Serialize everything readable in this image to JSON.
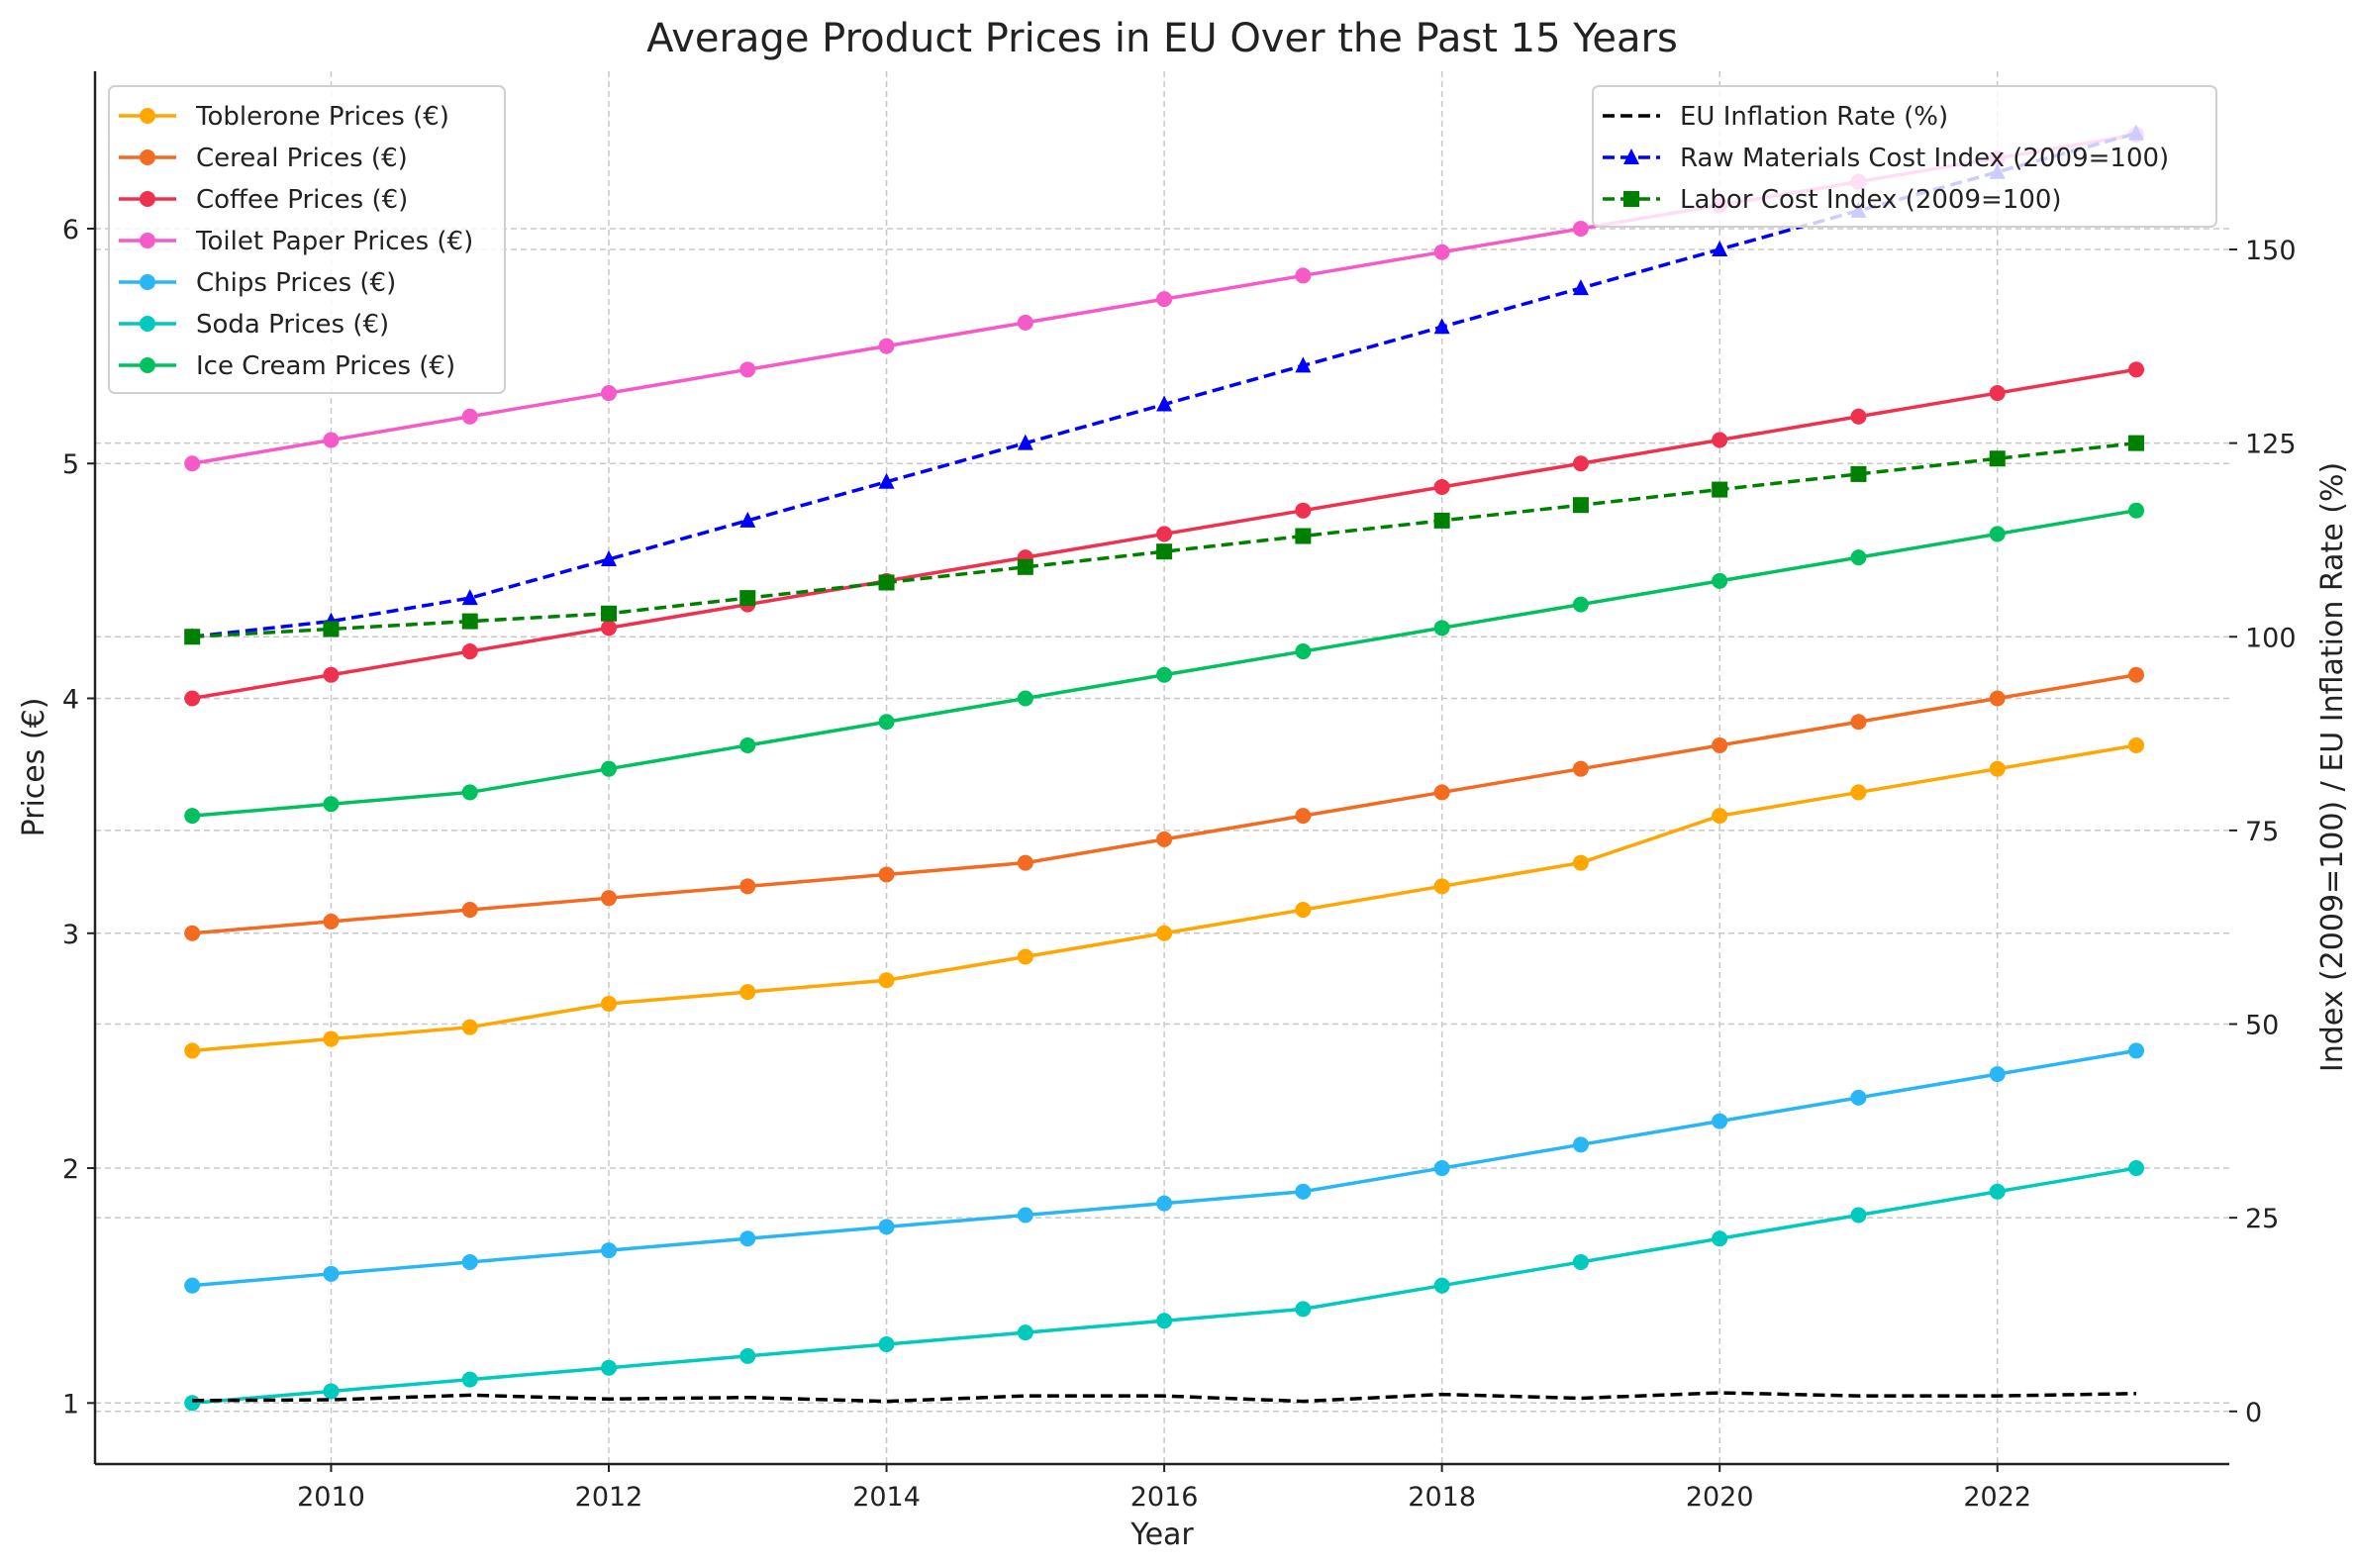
{
  "chart_data": {
    "type": "line",
    "title": "Average Product Prices in EU Over the Past 15 Years",
    "xlabel": "Year",
    "ylabel": "Prices (€)",
    "y2label": "Index (2009=100) / EU Inflation Rate (%)",
    "x": [
      2009,
      2010,
      2011,
      2012,
      2013,
      2014,
      2015,
      2016,
      2017,
      2018,
      2019,
      2020,
      2021,
      2022,
      2023
    ],
    "xlim": [
      2008.3,
      2023.67
    ],
    "ylim": [
      0.74,
      6.67
    ],
    "y2lim": [
      -6.8,
      173
    ],
    "xticks": [
      2010,
      2012,
      2014,
      2016,
      2018,
      2020,
      2022
    ],
    "yticks": [
      1,
      2,
      3,
      4,
      5,
      6
    ],
    "y2ticks": [
      0,
      25,
      50,
      75,
      100,
      125,
      150
    ],
    "grid": true,
    "series": [
      {
        "name": "Toblerone Prices (€)",
        "axis": "left",
        "color": "#FFA600",
        "style": "solid",
        "marker": "circle",
        "values": [
          2.5,
          2.55,
          2.6,
          2.7,
          2.75,
          2.8,
          2.9,
          3.0,
          3.1,
          3.2,
          3.3,
          3.5,
          3.6,
          3.7,
          3.8
        ]
      },
      {
        "name": "Cereal Prices (€)",
        "axis": "left",
        "color": "#F26B21",
        "style": "solid",
        "marker": "circle",
        "values": [
          3.0,
          3.05,
          3.1,
          3.15,
          3.2,
          3.25,
          3.3,
          3.4,
          3.5,
          3.6,
          3.7,
          3.8,
          3.9,
          4.0,
          4.1
        ]
      },
      {
        "name": "Coffee Prices (€)",
        "axis": "left",
        "color": "#F0304F",
        "style": "solid",
        "marker": "circle",
        "values": [
          4.0,
          4.1,
          4.2,
          4.3,
          4.4,
          4.5,
          4.6,
          4.7,
          4.8,
          4.9,
          5.0,
          5.1,
          5.2,
          5.3,
          5.4
        ]
      },
      {
        "name": "Toilet Paper Prices (€)",
        "axis": "left",
        "color": "#F55AC8",
        "style": "solid",
        "marker": "circle",
        "values": [
          5.0,
          5.1,
          5.2,
          5.3,
          5.4,
          5.5,
          5.6,
          5.7,
          5.8,
          5.9,
          6.0,
          6.1,
          6.2,
          6.3,
          6.4
        ]
      },
      {
        "name": "Chips Prices (€)",
        "axis": "left",
        "color": "#29B6F6",
        "style": "solid",
        "marker": "circle",
        "values": [
          1.5,
          1.55,
          1.6,
          1.65,
          1.7,
          1.75,
          1.8,
          1.85,
          1.9,
          2.0,
          2.1,
          2.2,
          2.3,
          2.4,
          2.5
        ]
      },
      {
        "name": "Soda Prices (€)",
        "axis": "left",
        "color": "#00C9BE",
        "style": "solid",
        "marker": "circle",
        "values": [
          1.0,
          1.05,
          1.1,
          1.15,
          1.2,
          1.25,
          1.3,
          1.35,
          1.4,
          1.5,
          1.6,
          1.7,
          1.8,
          1.9,
          2.0
        ]
      },
      {
        "name": "Ice Cream Prices (€)",
        "axis": "left",
        "color": "#00C060",
        "style": "solid",
        "marker": "circle",
        "values": [
          3.5,
          3.55,
          3.6,
          3.7,
          3.8,
          3.9,
          4.0,
          4.1,
          4.2,
          4.3,
          4.4,
          4.5,
          4.6,
          4.7,
          4.8
        ]
      },
      {
        "name": "EU Inflation Rate (%)",
        "axis": "right",
        "color": "#000000",
        "style": "dashed",
        "marker": "none",
        "values": [
          1.4,
          1.5,
          2.1,
          1.6,
          1.8,
          1.3,
          2.0,
          2.0,
          1.3,
          2.2,
          1.7,
          2.4,
          2.0,
          2.0,
          2.3
        ]
      },
      {
        "name": "Raw Materials Cost Index (2009=100)",
        "axis": "right",
        "color": "#0000FF",
        "style": "dashed",
        "marker": "triangle",
        "values": [
          100,
          102,
          105,
          110,
          115,
          120,
          125,
          130,
          135,
          140,
          145,
          150,
          155,
          160,
          165
        ]
      },
      {
        "name": "Labor Cost Index (2009=100)",
        "axis": "right",
        "color": "#008000",
        "style": "dashed",
        "marker": "square",
        "values": [
          100,
          101,
          102,
          103,
          105,
          107,
          109,
          111,
          113,
          115,
          117,
          119,
          121,
          123,
          125
        ]
      }
    ],
    "legends": {
      "left_series": [
        0,
        1,
        2,
        3,
        4,
        5,
        6
      ],
      "right_series": [
        7,
        8,
        9
      ],
      "left_placement": "upper-left",
      "right_placement": "upper-right"
    }
  }
}
